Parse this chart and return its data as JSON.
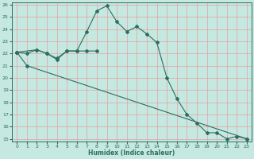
{
  "xlabel": "Humidex (Indice chaleur)",
  "bg_color": "#c5e8e0",
  "grid_color": "#e8a0a0",
  "line_color": "#2d6e60",
  "ylim": [
    15,
    26
  ],
  "xlim": [
    -0.5,
    23.5
  ],
  "yticks": [
    15,
    16,
    17,
    18,
    19,
    20,
    21,
    22,
    23,
    24,
    25,
    26
  ],
  "xticks": [
    0,
    1,
    2,
    3,
    4,
    5,
    6,
    7,
    8,
    9,
    10,
    11,
    12,
    13,
    14,
    15,
    16,
    17,
    18,
    19,
    20,
    21,
    22,
    23
  ],
  "line1_x": [
    0,
    1,
    2,
    3,
    4,
    5,
    6,
    7,
    8,
    9,
    10,
    11,
    12,
    13,
    14,
    15,
    16,
    17,
    18,
    19,
    20,
    21,
    22,
    23
  ],
  "line1_y": [
    22.1,
    22.0,
    22.3,
    22.0,
    21.5,
    22.2,
    22.2,
    23.8,
    25.5,
    25.9,
    24.6,
    23.8,
    24.2,
    23.6,
    22.9,
    20.0,
    18.3,
    17.0,
    16.3,
    15.5,
    15.5,
    15.0,
    15.2,
    15.0
  ],
  "line2_x": [
    0,
    2,
    3,
    4,
    5,
    6,
    7,
    8
  ],
  "line2_y": [
    22.1,
    22.3,
    22.0,
    21.6,
    22.2,
    22.2,
    22.2,
    22.2
  ],
  "line3_x": [
    0,
    1,
    23
  ],
  "line3_y": [
    22.1,
    21.0,
    15.0
  ]
}
